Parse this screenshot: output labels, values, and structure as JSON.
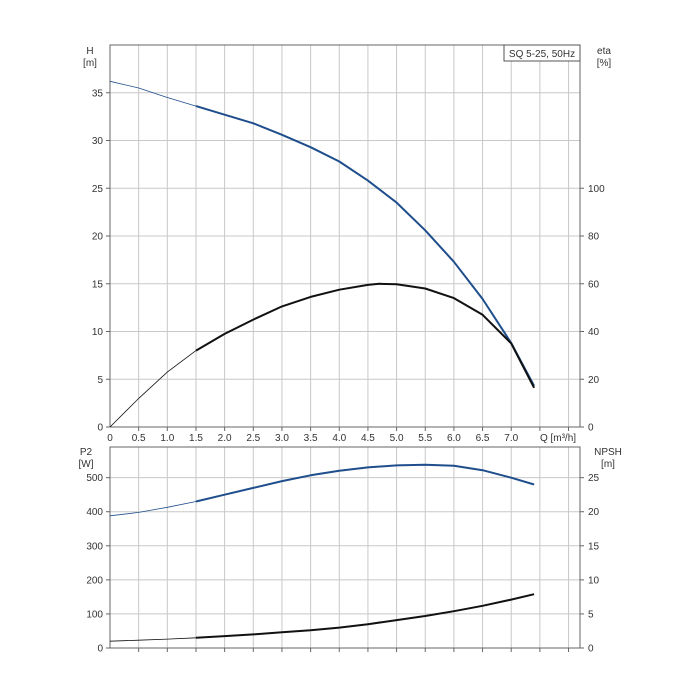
{
  "legend_box": "SQ 5-25, 50Hz",
  "chart_data": [
    {
      "type": "line",
      "name": "upper-chart",
      "x_label": "Q [m³/h]",
      "y_left_label": [
        "H",
        "[m]"
      ],
      "y_right_label": [
        "eta",
        "[%]"
      ],
      "xlim": [
        0,
        8.2
      ],
      "ylim_left": [
        0,
        40
      ],
      "ylim_right": [
        0,
        160
      ],
      "x_ticks": [
        "0",
        "0.5",
        "1.0",
        "1.5",
        "2.0",
        "2.5",
        "3.0",
        "3.5",
        "4.0",
        "4.5",
        "5.0",
        "5.5",
        "6.0",
        "6.5",
        "7.0"
      ],
      "x_tick_values": [
        0,
        0.5,
        1.0,
        1.5,
        2.0,
        2.5,
        3.0,
        3.5,
        4.0,
        4.5,
        5.0,
        5.5,
        6.0,
        6.5,
        7.0
      ],
      "y_left_ticks": [
        0,
        5,
        10,
        15,
        20,
        25,
        30,
        35
      ],
      "y_right_ticks": [
        0,
        20,
        40,
        60,
        80,
        100
      ],
      "grid": true,
      "series": [
        {
          "axis": "left",
          "color": "#1f4e8c",
          "thin_until_x": 1.5,
          "x": [
            0,
            0.5,
            1.0,
            1.5,
            2.0,
            2.5,
            3.0,
            3.5,
            4.0,
            4.5,
            5.0,
            5.5,
            6.0,
            6.5,
            7.0,
            7.4
          ],
          "y": [
            36.2,
            35.5,
            34.5,
            33.6,
            32.7,
            31.8,
            30.6,
            29.3,
            27.8,
            25.8,
            23.5,
            20.6,
            17.3,
            13.4,
            8.8,
            4.3
          ]
        },
        {
          "axis": "right",
          "color": "#111111",
          "thin_until_x": 1.5,
          "x": [
            0,
            0.5,
            1.0,
            1.5,
            2.0,
            2.5,
            3.0,
            3.5,
            4.0,
            4.5,
            4.7,
            5.0,
            5.5,
            6.0,
            6.5,
            7.0,
            7.4
          ],
          "y": [
            0,
            12,
            23,
            32,
            39,
            45,
            50.5,
            54.5,
            57.5,
            59.5,
            60,
            59.8,
            58,
            54,
            47,
            35,
            16.4
          ]
        }
      ]
    },
    {
      "type": "line",
      "name": "lower-chart",
      "y_left_label": [
        "P2",
        "[W]"
      ],
      "y_right_label": [
        "NPSH",
        "[m]"
      ],
      "xlim": [
        0,
        8.2
      ],
      "ylim_left": [
        0,
        590
      ],
      "ylim_right": [
        0,
        29.5
      ],
      "y_left_ticks": [
        0,
        100,
        200,
        300,
        400,
        500
      ],
      "y_right_ticks": [
        0,
        5,
        10,
        15,
        20,
        25
      ],
      "grid": true,
      "series": [
        {
          "axis": "left",
          "color": "#1f4e8c",
          "thin_until_x": 1.5,
          "x": [
            0,
            0.5,
            1.0,
            1.5,
            2.0,
            2.5,
            3.0,
            3.5,
            4.0,
            4.5,
            5.0,
            5.5,
            6.0,
            6.5,
            7.0,
            7.4
          ],
          "y": [
            388,
            398,
            413,
            430,
            450,
            470,
            490,
            507,
            520,
            530,
            536,
            538,
            535,
            522,
            500,
            480
          ]
        },
        {
          "axis": "right",
          "color": "#111111",
          "thin_until_x": 1.5,
          "x": [
            0,
            0.5,
            1.0,
            1.5,
            2.0,
            2.5,
            3.0,
            3.5,
            4.0,
            4.5,
            5.0,
            5.5,
            6.0,
            6.5,
            7.0,
            7.4
          ],
          "y": [
            1.0,
            1.15,
            1.3,
            1.5,
            1.75,
            2.0,
            2.3,
            2.6,
            3.0,
            3.5,
            4.1,
            4.7,
            5.4,
            6.2,
            7.1,
            7.9
          ]
        }
      ]
    }
  ]
}
